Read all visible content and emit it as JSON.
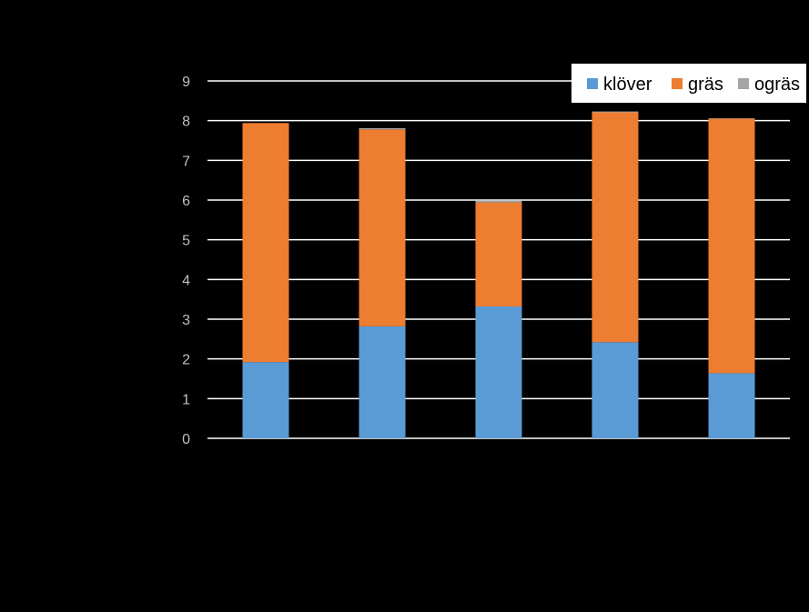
{
  "chart_data": {
    "type": "bar",
    "stacked": true,
    "categories": [
      "",
      "",
      "",
      "",
      ""
    ],
    "series": [
      {
        "name": "klöver",
        "color": "#5b9bd5",
        "values": [
          1.92,
          2.82,
          3.32,
          2.42,
          1.64
        ]
      },
      {
        "name": "gräs",
        "color": "#ed7d31",
        "values": [
          6.02,
          4.96,
          2.62,
          5.79,
          6.41
        ]
      },
      {
        "name": "ogräs",
        "color": "#a5a5a5",
        "values": [
          0.0,
          0.03,
          0.05,
          0.02,
          0.01
        ]
      }
    ],
    "ylim": [
      0,
      9
    ],
    "yticks": [
      "0",
      "1",
      "2",
      "3",
      "4",
      "5",
      "6",
      "7",
      "8",
      "9"
    ],
    "grid": true,
    "legend_position": "top-right",
    "background": "#000000",
    "gridline_color": "#ffffff",
    "tick_label_color": "#bfbfbf"
  }
}
